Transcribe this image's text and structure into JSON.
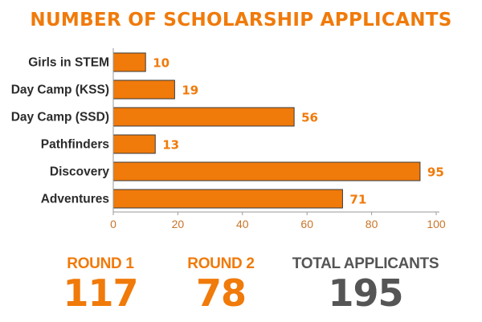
{
  "colors": {
    "accent": "#f07a0a",
    "axis_text": "#c9742a",
    "dark": "#555555",
    "bar_edge": "#3a3a3a"
  },
  "chart_data": {
    "type": "bar",
    "orientation": "horizontal",
    "title": "NUMBER OF SCHOLARSHIP APPLICANTS",
    "categories": [
      "Girls in STEM",
      "Day Camp (KSS)",
      "Day Camp (SSD)",
      "Pathfinders",
      "Discovery",
      "Adventures"
    ],
    "values": [
      10,
      19,
      56,
      13,
      95,
      71
    ],
    "xlim": [
      0,
      100
    ],
    "xticks": [
      0,
      20,
      40,
      60,
      80,
      100
    ],
    "grid": false,
    "legend": "none"
  },
  "stats": {
    "round1": {
      "label": "ROUND 1",
      "value": "117"
    },
    "round2": {
      "label": "ROUND 2",
      "value": "78"
    },
    "total": {
      "label": "TOTAL APPLICANTS",
      "value": "195"
    }
  }
}
